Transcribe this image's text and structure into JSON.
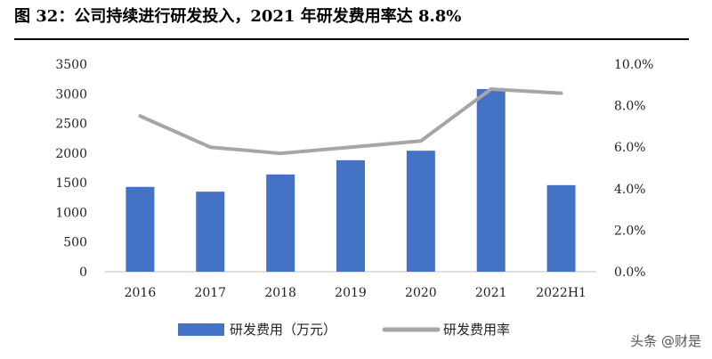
{
  "title": "图 32：公司持续进行研发投入，2021 年研发费用率达 8.8%",
  "watermark": "头条 @财是",
  "chart_data": {
    "type": "bar+line",
    "categories": [
      "2016",
      "2017",
      "2018",
      "2019",
      "2020",
      "2021",
      "2022H1"
    ],
    "series": [
      {
        "name": "研发费用（万元）",
        "type": "bar",
        "axis": "left",
        "color": "#4472C4",
        "values": [
          1430,
          1350,
          1640,
          1880,
          2040,
          3080,
          1460
        ]
      },
      {
        "name": "研发费用率",
        "type": "line",
        "axis": "right",
        "color": "#A6A6A6",
        "values": [
          7.5,
          6.0,
          5.7,
          6.0,
          6.3,
          8.8,
          8.6
        ]
      }
    ],
    "y_left": {
      "ylim": [
        0,
        3500
      ],
      "ticks": [
        "0",
        "500",
        "1000",
        "1500",
        "2000",
        "2500",
        "3000",
        "3500"
      ]
    },
    "y_right": {
      "ylim": [
        0,
        10
      ],
      "unit": "%",
      "ticks": [
        "0.0%",
        "2.0%",
        "4.0%",
        "6.0%",
        "8.0%",
        "10.0%"
      ]
    },
    "grid": false,
    "legend": "bottom"
  }
}
